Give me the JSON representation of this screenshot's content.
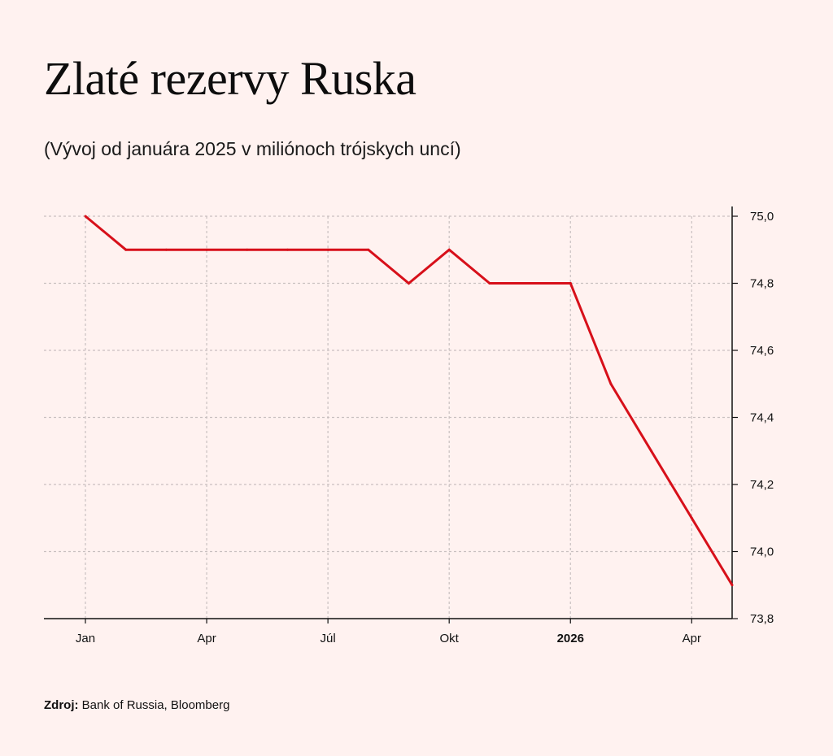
{
  "title": "Zlaté rezervy Ruska",
  "subtitle": "(Vývoj od januára 2025 v miliónoch trójskych uncí)",
  "source": {
    "label": "Zdroj:",
    "text": "Bank of Russia, Bloomberg"
  },
  "colors": {
    "line": "#d7101a",
    "background": "#fff2f0",
    "grid": "#c9c0c0",
    "axis": "#111111"
  },
  "chart_data": {
    "type": "line",
    "x_start": "2025-01",
    "x_end": "2026-05",
    "x_ticks": [
      {
        "label": "Jan",
        "value": "2025-01",
        "bold": false
      },
      {
        "label": "Apr",
        "value": "2025-04",
        "bold": false
      },
      {
        "label": "Júl",
        "value": "2025-07",
        "bold": false
      },
      {
        "label": "Okt",
        "value": "2025-10",
        "bold": false
      },
      {
        "label": "2026",
        "value": "2026-01",
        "bold": true
      },
      {
        "label": "Apr",
        "value": "2026-04",
        "bold": false
      }
    ],
    "y_ticks": [
      "75,0",
      "74,8",
      "74,6",
      "74,4",
      "74,2",
      "74,0",
      "73,8"
    ],
    "ylim": [
      73.8,
      75.0
    ],
    "y_axis_position": "right",
    "grid": true,
    "series": [
      {
        "x": [
          "2025-01",
          "2025-02",
          "2025-03",
          "2025-04",
          "2025-05",
          "2025-06",
          "2025-07",
          "2025-08",
          "2025-09",
          "2025-10",
          "2025-11",
          "2025-12",
          "2026-01",
          "2026-02",
          "2026-03",
          "2026-04",
          "2026-05"
        ],
        "values": [
          75.0,
          74.9,
          74.9,
          74.9,
          74.9,
          74.9,
          74.9,
          74.9,
          74.8,
          74.9,
          74.8,
          74.8,
          74.8,
          74.5,
          74.3,
          74.1,
          73.9
        ]
      }
    ]
  }
}
